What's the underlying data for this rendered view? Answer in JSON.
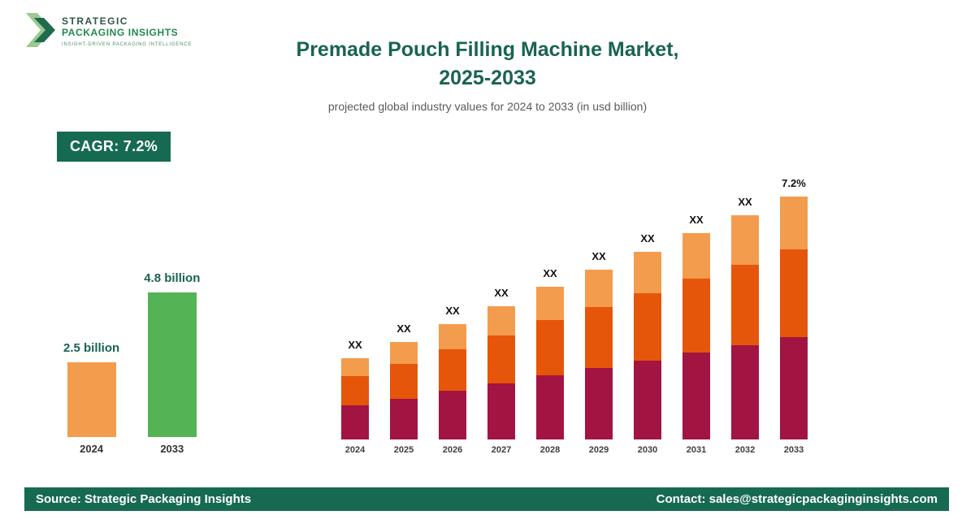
{
  "header": {
    "logo": {
      "line1": "STRATEGIC",
      "line2": "PACKAGING INSIGHTS",
      "tagline": "INSIGHT-DRIVEN PACKAGING INTELLIGENCE"
    },
    "title_line1": "Premade Pouch Filling Machine Market,",
    "title_line2": "2025-2033",
    "subtitle": "projected global industry values for 2024 to 2033 (in usd billion)"
  },
  "cagr_badge": "CAGR: 7.2%",
  "footer": {
    "source": "Source: Strategic Packaging Insights",
    "contact": "Contact: sales@strategicpackaginginsights.com"
  },
  "colors": {
    "brand_dark_green": "#176a52",
    "title_teal": "#1a6352",
    "light_orange": "#f49c4d",
    "dark_orange": "#e5560a",
    "crimson": "#a21441",
    "green_bar": "#54b355"
  },
  "chart_data": [
    {
      "type": "bar",
      "name": "market-size-summary",
      "title": "",
      "categories": [
        "2024",
        "2033"
      ],
      "values": [
        2.5,
        4.8
      ],
      "value_labels": [
        "2.5 billion",
        "4.8 billion"
      ],
      "bar_colors": [
        "#f49c4d",
        "#54b355"
      ],
      "unit": "usd billion",
      "grid": false,
      "axes_shown": false
    },
    {
      "type": "bar",
      "subtype": "stacked",
      "name": "projected-values-2024-2033",
      "categories": [
        "2024",
        "2025",
        "2026",
        "2027",
        "2028",
        "2029",
        "2030",
        "2031",
        "2032",
        "2033"
      ],
      "series": [
        {
          "name": "segment-bottom",
          "color": "#a21441",
          "values": [
            42,
            50,
            60,
            69,
            79,
            88,
            97,
            107,
            116,
            126
          ]
        },
        {
          "name": "segment-middle",
          "color": "#e5560a",
          "values": [
            36,
            43,
            51,
            59,
            68,
            75,
            83,
            91,
            99,
            108
          ]
        },
        {
          "name": "segment-top",
          "color": "#f49c4d",
          "values": [
            22,
            27,
            31,
            36,
            41,
            46,
            51,
            56,
            61,
            65
          ]
        }
      ],
      "values_note": "relative height units; on-chart data labels are masked as XX",
      "bar_labels": [
        "XX",
        "XX",
        "XX",
        "XX",
        "XX",
        "XX",
        "XX",
        "XX",
        "XX",
        "7.2%"
      ],
      "grid": false,
      "axes_shown": false,
      "legend": "none"
    }
  ]
}
